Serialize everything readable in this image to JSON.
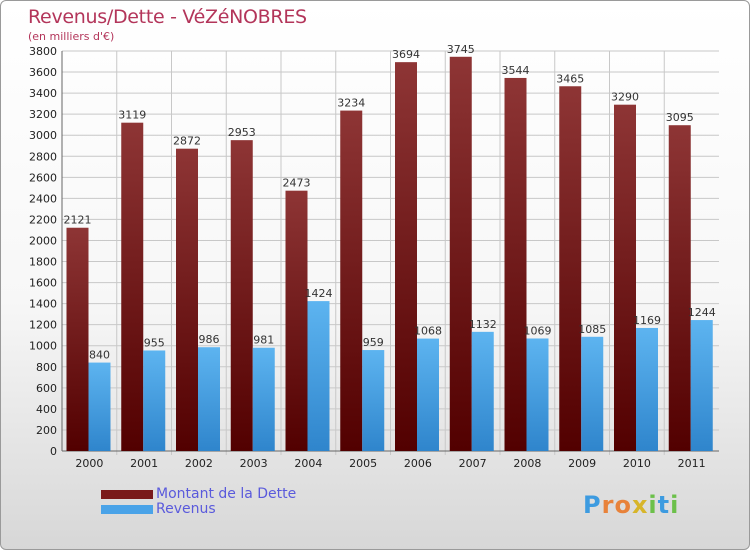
{
  "header": {
    "title": "Revenus/Dette - VéZéNOBRES",
    "subtitle": "(en milliers d'€)"
  },
  "legend": {
    "items": [
      {
        "label": "Montant de la Dette",
        "color": "#7a1a1a"
      },
      {
        "label": "Revenus",
        "color": "#4aa3e8"
      }
    ]
  },
  "logo": {
    "letters": [
      {
        "ch": "P",
        "color": "#3d9be0"
      },
      {
        "ch": "r",
        "color": "#e8823a"
      },
      {
        "ch": "o",
        "color": "#e8823a"
      },
      {
        "ch": "x",
        "color": "#d7b52a"
      },
      {
        "ch": "i",
        "color": "#6cc04a"
      },
      {
        "ch": "t",
        "color": "#3d9be0"
      },
      {
        "ch": "i",
        "color": "#6cc04a"
      }
    ]
  },
  "chart_data": {
    "type": "bar",
    "categories": [
      "2000",
      "2001",
      "2002",
      "2003",
      "2004",
      "2005",
      "2006",
      "2007",
      "2008",
      "2009",
      "2010",
      "2011"
    ],
    "series": [
      {
        "name": "Montant de la Dette",
        "color": "#7a1a1a",
        "values": [
          2121,
          3119,
          2872,
          2953,
          2473,
          3234,
          3694,
          3745,
          3544,
          3465,
          3290,
          3095
        ]
      },
      {
        "name": "Revenus",
        "color": "#4aa3e8",
        "values": [
          840,
          955,
          986,
          981,
          1424,
          959,
          1068,
          1132,
          1069,
          1085,
          1169,
          1244
        ]
      }
    ],
    "ylim": [
      0,
      3800
    ],
    "ytick_step": 200,
    "grid": true,
    "legend_position": "bottom-left"
  }
}
